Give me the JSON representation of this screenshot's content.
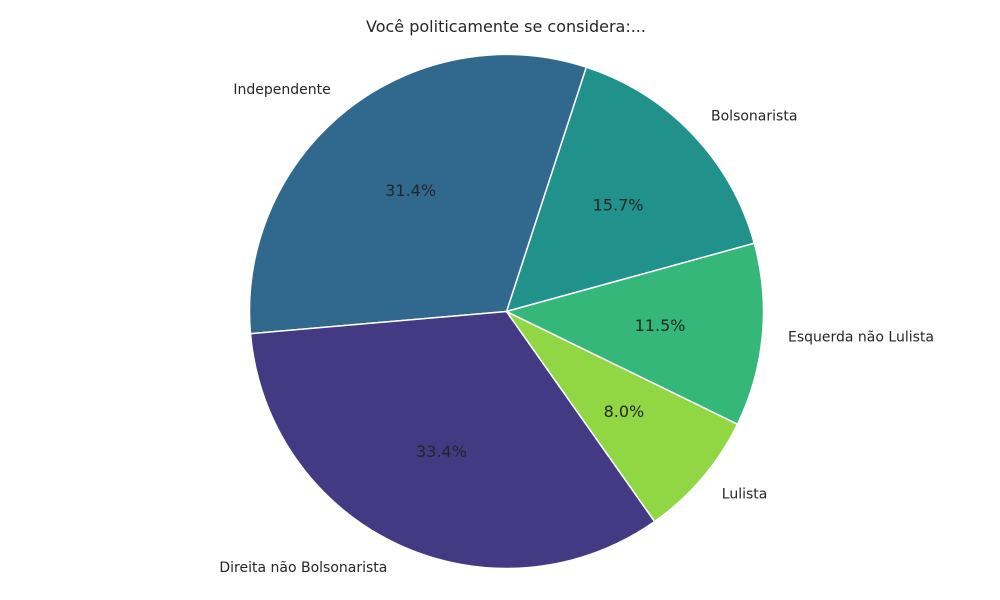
{
  "chart_data": {
    "type": "pie",
    "title": "Você politicamente se considera:...",
    "slices": [
      {
        "label": "Bolsonarista",
        "value": 15.7,
        "pct_text": "15.7%",
        "color": "#21918c"
      },
      {
        "label": "Independente",
        "value": 31.4,
        "pct_text": "31.4%",
        "color": "#31688e"
      },
      {
        "label": "Direita não Bolsonarista",
        "value": 33.4,
        "pct_text": "33.4%",
        "color": "#443983"
      },
      {
        "label": "Lulista",
        "value": 8.0,
        "pct_text": "8.0%",
        "color": "#90d743"
      },
      {
        "label": "Esquerda não Lulista",
        "value": 11.5,
        "pct_text": "11.5%",
        "color": "#35b779"
      }
    ]
  }
}
